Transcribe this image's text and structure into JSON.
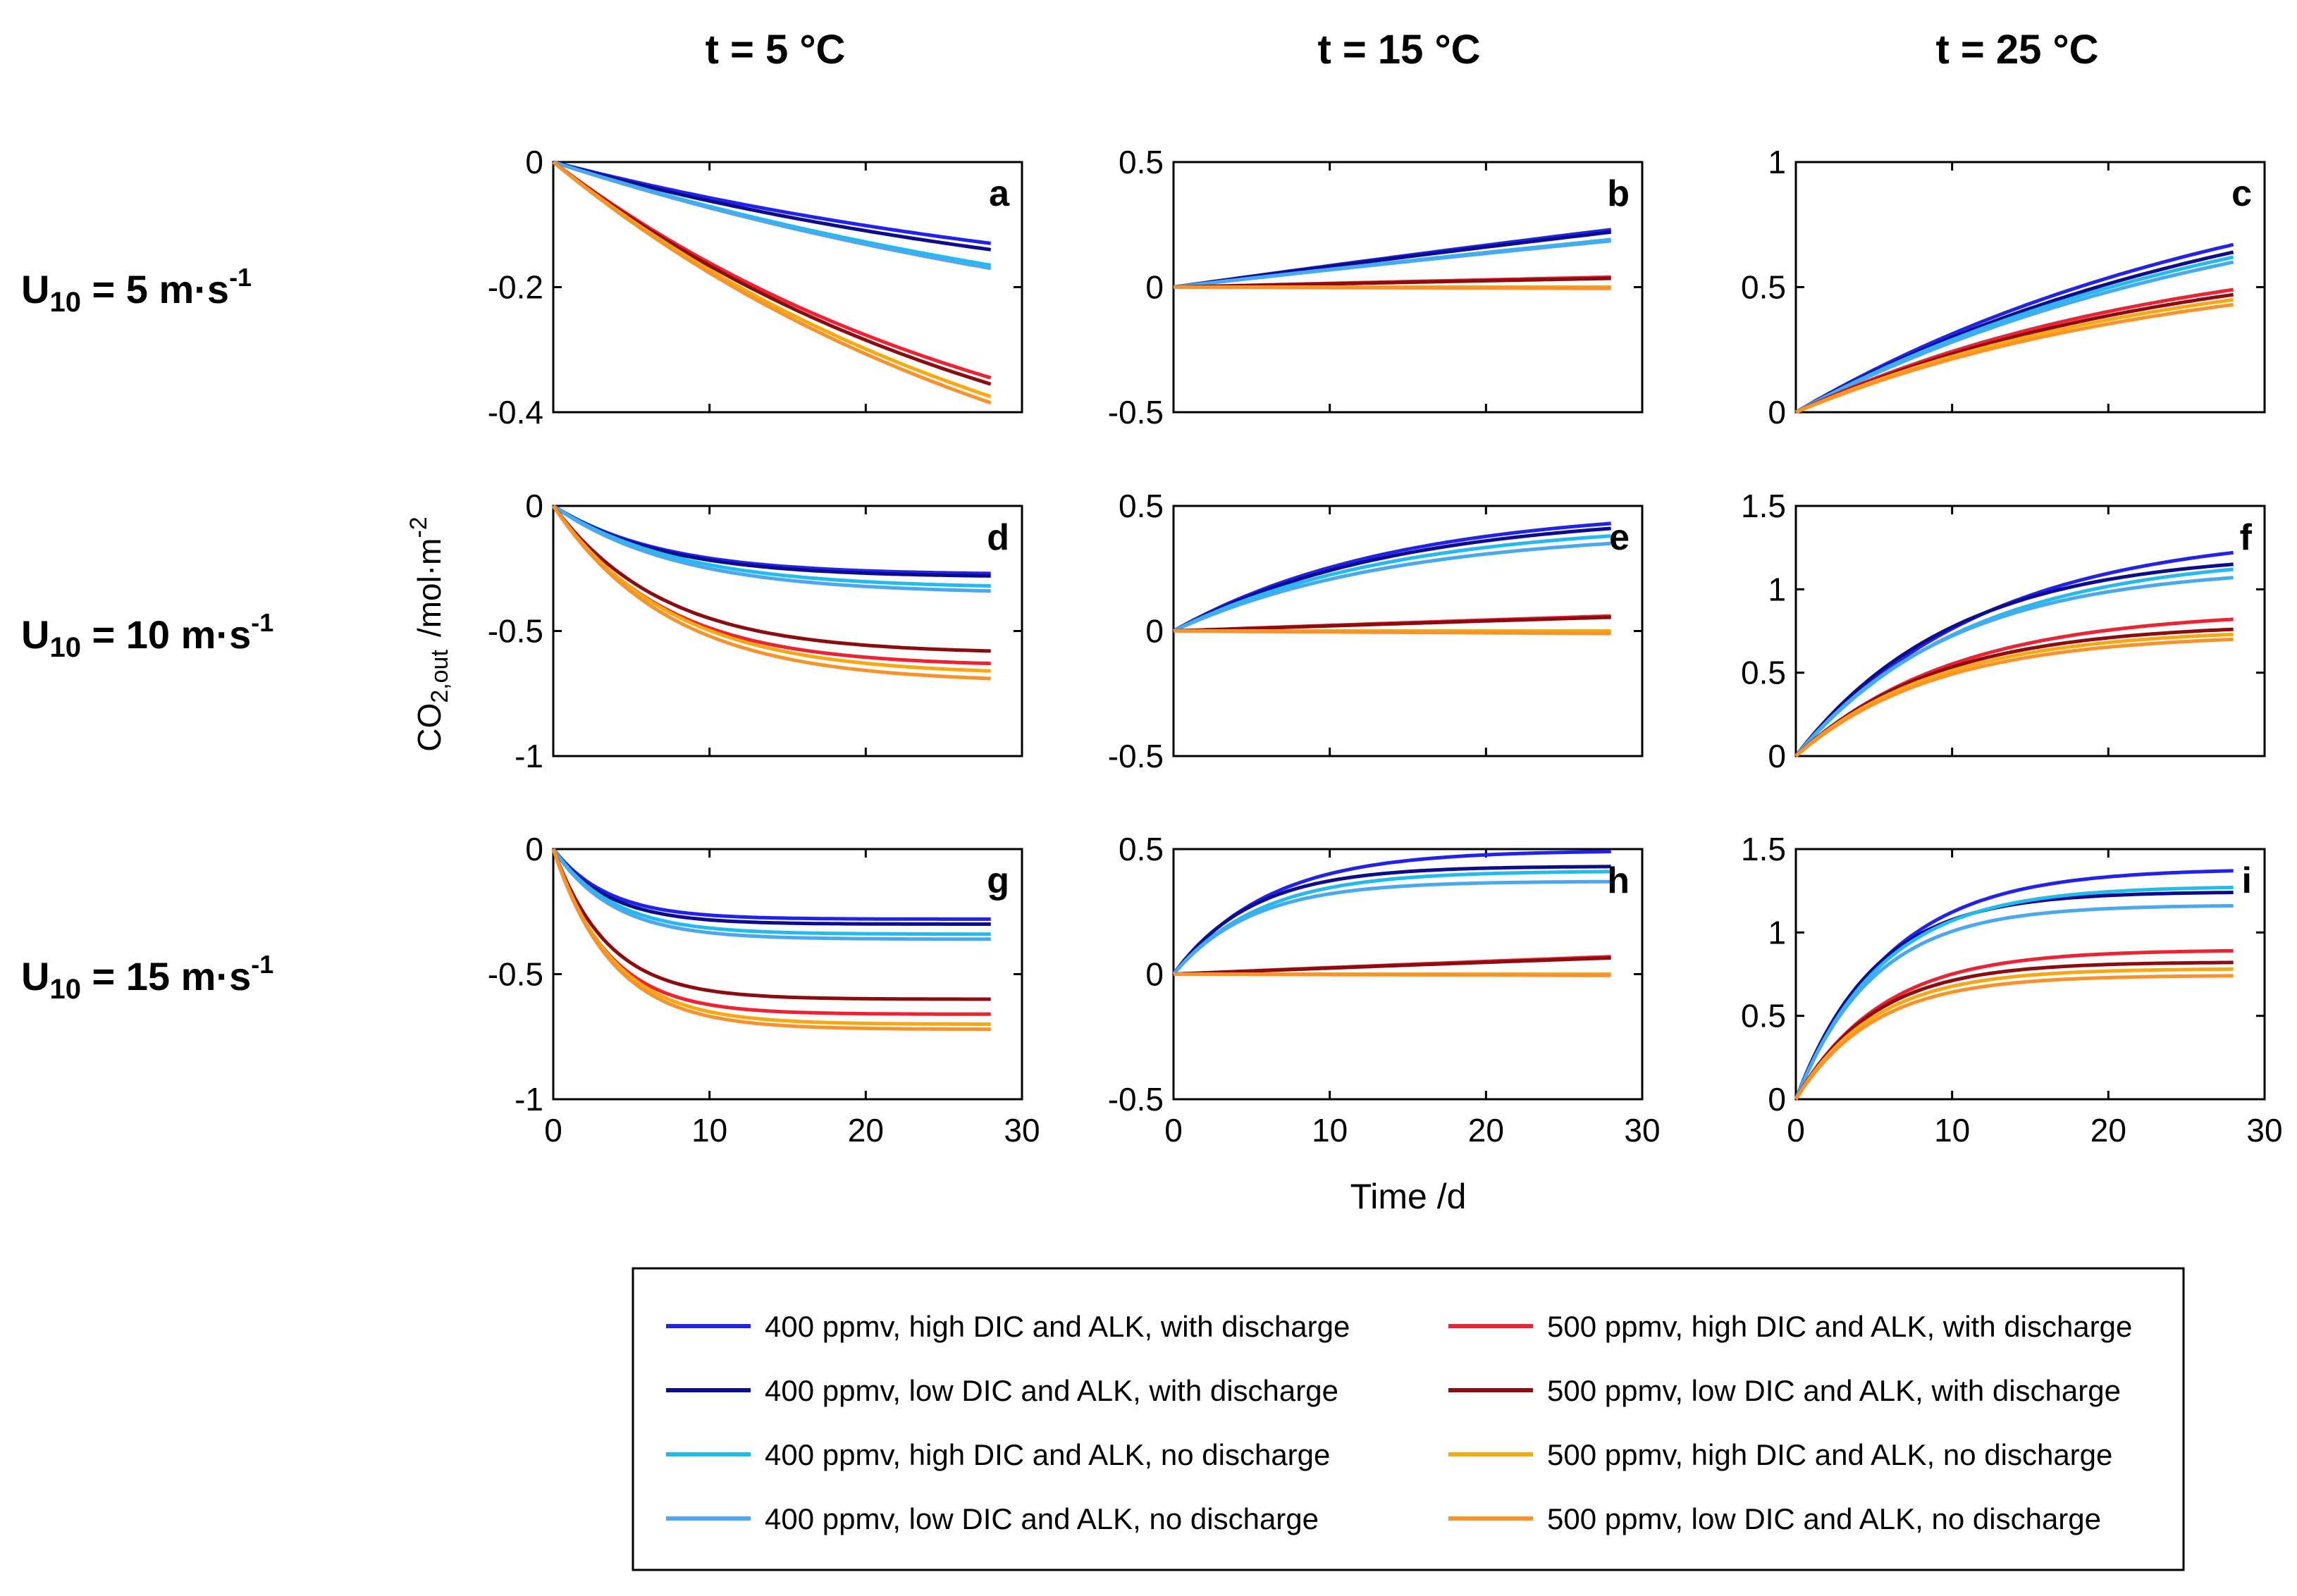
{
  "figure": {
    "column_titles": [
      "t = 5 °C",
      "t = 15 °C",
      "t = 25 °C"
    ],
    "row_labels": [
      {
        "prefix": "U",
        "sub": "10",
        "text": " = 5 m·s",
        "sup": "-1"
      },
      {
        "prefix": "U",
        "sub": "10",
        "text": " = 10 m·s",
        "sup": "-1"
      },
      {
        "prefix": "U",
        "sub": "10",
        "text": " = 15 m·s",
        "sup": "-1"
      }
    ],
    "ylabel": {
      "main": "CO",
      "sub": "2,out",
      "units": "/mol·m",
      "sup": "-2"
    },
    "xlabel": "Time /d"
  },
  "colors": {
    "s400_high_with": "#2222ee",
    "s400_low_with": "#0c0c8c",
    "s400_high_no": "#22bbee",
    "s400_low_no": "#4aa8f0",
    "s500_high_with": "#ee2233",
    "s500_low_with": "#8c0c10",
    "s500_high_no": "#f8a810",
    "s500_low_no": "#f8922a"
  },
  "legend": [
    {
      "key": "s400_high_with",
      "label": "400 ppmv, high DIC and ALK, with discharge"
    },
    {
      "key": "s400_low_with",
      "label": "400 ppmv, low DIC and ALK, with discharge"
    },
    {
      "key": "s400_high_no",
      "label": "400 ppmv, high DIC and ALK, no discharge"
    },
    {
      "key": "s400_low_no",
      "label": "400 ppmv, low DIC and ALK, no discharge"
    },
    {
      "key": "s500_high_with",
      "label": "500 ppmv, high DIC and ALK, with discharge"
    },
    {
      "key": "s500_low_with",
      "label": "500 ppmv, low DIC and ALK, with discharge"
    },
    {
      "key": "s500_high_no",
      "label": "500 ppmv, high DIC and ALK, no discharge"
    },
    {
      "key": "s500_low_no",
      "label": "500 ppmv, low DIC and ALK, no discharge"
    }
  ],
  "chart_data": [
    {
      "type": "line",
      "panel": "a",
      "title": "",
      "xlabel": "Time /d",
      "ylabel": "CO2,out /mol·m-2",
      "xlim": [
        0,
        30
      ],
      "ylim": [
        -0.4,
        0
      ],
      "xticks": [
        "0",
        "10",
        "20",
        "30"
      ],
      "yticks": [
        "-0.4",
        "-0.2",
        "0"
      ],
      "x_end": 28,
      "model": "series final values at day 28 (approach curves from 0)",
      "series": [
        {
          "key": "s400_high_with",
          "final": -0.13,
          "tau": 40
        },
        {
          "key": "s400_low_with",
          "final": -0.14,
          "tau": 38
        },
        {
          "key": "s400_high_no",
          "final": -0.165,
          "tau": 45
        },
        {
          "key": "s400_low_no",
          "final": -0.17,
          "tau": 45
        },
        {
          "key": "s500_high_with",
          "final": -0.345,
          "tau": 30
        },
        {
          "key": "s500_low_with",
          "final": -0.355,
          "tau": 30
        },
        {
          "key": "s500_high_no",
          "final": -0.375,
          "tau": 32
        },
        {
          "key": "s500_low_no",
          "final": -0.385,
          "tau": 32
        }
      ]
    },
    {
      "type": "line",
      "panel": "b",
      "xlim": [
        0,
        30
      ],
      "ylim": [
        -0.5,
        0.5
      ],
      "xticks": [
        "0",
        "10",
        "20",
        "30"
      ],
      "yticks": [
        "-0.5",
        "0",
        "0.5"
      ],
      "x_end": 28,
      "series": [
        {
          "key": "s400_high_with",
          "final": 0.23,
          "tau": 200
        },
        {
          "key": "s400_low_with",
          "final": 0.22,
          "tau": 200
        },
        {
          "key": "s400_high_no",
          "final": 0.19,
          "tau": 200
        },
        {
          "key": "s400_low_no",
          "final": 0.185,
          "tau": 200
        },
        {
          "key": "s500_high_with",
          "final": 0.04,
          "tau": 200
        },
        {
          "key": "s500_low_with",
          "final": 0.035,
          "tau": 200
        },
        {
          "key": "s500_high_no",
          "final": 0.0,
          "tau": 200
        },
        {
          "key": "s500_low_no",
          "final": -0.005,
          "tau": 200
        }
      ]
    },
    {
      "type": "line",
      "panel": "c",
      "xlim": [
        0,
        30
      ],
      "ylim": [
        0,
        1
      ],
      "xticks": [
        "0",
        "10",
        "20",
        "30"
      ],
      "yticks": [
        "0",
        "0.5",
        "1"
      ],
      "x_end": 28,
      "series": [
        {
          "key": "s400_high_with",
          "final": 0.67,
          "tau": 30
        },
        {
          "key": "s400_low_with",
          "final": 0.64,
          "tau": 30
        },
        {
          "key": "s400_high_no",
          "final": 0.62,
          "tau": 30
        },
        {
          "key": "s400_low_no",
          "final": 0.6,
          "tau": 30
        },
        {
          "key": "s500_high_with",
          "final": 0.49,
          "tau": 24
        },
        {
          "key": "s500_low_with",
          "final": 0.47,
          "tau": 24
        },
        {
          "key": "s500_high_no",
          "final": 0.45,
          "tau": 24
        },
        {
          "key": "s500_low_no",
          "final": 0.43,
          "tau": 24
        }
      ]
    },
    {
      "type": "line",
      "panel": "d",
      "xlim": [
        0,
        30
      ],
      "ylim": [
        -1,
        0
      ],
      "xticks": [
        "0",
        "10",
        "20",
        "30"
      ],
      "yticks": [
        "-1",
        "-0.5",
        "0"
      ],
      "x_end": 28,
      "series": [
        {
          "key": "s400_high_with",
          "final": -0.27,
          "tau": 7
        },
        {
          "key": "s400_low_with",
          "final": -0.28,
          "tau": 7
        },
        {
          "key": "s400_high_no",
          "final": -0.32,
          "tau": 8
        },
        {
          "key": "s400_low_no",
          "final": -0.34,
          "tau": 8
        },
        {
          "key": "s500_high_with",
          "final": -0.63,
          "tau": 7
        },
        {
          "key": "s500_low_with",
          "final": -0.58,
          "tau": 7
        },
        {
          "key": "s500_high_no",
          "final": -0.66,
          "tau": 7.5
        },
        {
          "key": "s500_low_no",
          "final": -0.69,
          "tau": 7.5
        }
      ]
    },
    {
      "type": "line",
      "panel": "e",
      "xlim": [
        0,
        30
      ],
      "ylim": [
        -0.5,
        0.5
      ],
      "xticks": [
        "0",
        "10",
        "20",
        "30"
      ],
      "yticks": [
        "-0.5",
        "0",
        "0.5"
      ],
      "x_end": 28,
      "series": [
        {
          "key": "s400_high_with",
          "final": 0.43,
          "tau": 14
        },
        {
          "key": "s400_low_with",
          "final": 0.41,
          "tau": 14
        },
        {
          "key": "s400_high_no",
          "final": 0.38,
          "tau": 14
        },
        {
          "key": "s400_low_no",
          "final": 0.35,
          "tau": 14
        },
        {
          "key": "s500_high_with",
          "final": 0.06,
          "tau": 200
        },
        {
          "key": "s500_low_with",
          "final": 0.055,
          "tau": 200
        },
        {
          "key": "s500_high_no",
          "final": 0.0,
          "tau": 200
        },
        {
          "key": "s500_low_no",
          "final": -0.01,
          "tau": 200
        }
      ]
    },
    {
      "type": "line",
      "panel": "f",
      "xlim": [
        0,
        30
      ],
      "ylim": [
        0,
        1.5
      ],
      "xticks": [
        "0",
        "10",
        "20",
        "30"
      ],
      "yticks": [
        "0",
        "0.5",
        "1",
        "1.5"
      ],
      "x_end": 28,
      "series": [
        {
          "key": "s400_high_with",
          "final": 1.22,
          "tau": 12
        },
        {
          "key": "s400_low_with",
          "final": 1.15,
          "tau": 10
        },
        {
          "key": "s400_high_no",
          "final": 1.12,
          "tau": 11
        },
        {
          "key": "s400_low_no",
          "final": 1.07,
          "tau": 10
        },
        {
          "key": "s500_high_with",
          "final": 0.82,
          "tau": 10
        },
        {
          "key": "s500_low_with",
          "final": 0.76,
          "tau": 9
        },
        {
          "key": "s500_high_no",
          "final": 0.73,
          "tau": 9
        },
        {
          "key": "s500_low_no",
          "final": 0.7,
          "tau": 9
        }
      ]
    },
    {
      "type": "line",
      "panel": "g",
      "xlim": [
        0,
        30
      ],
      "ylim": [
        -1,
        0
      ],
      "xticks": [
        "0",
        "10",
        "20",
        "30"
      ],
      "yticks": [
        "-1",
        "-0.5",
        "0"
      ],
      "x_end": 28,
      "series": [
        {
          "key": "s400_high_with",
          "final": -0.28,
          "tau": 3.5
        },
        {
          "key": "s400_low_with",
          "final": -0.3,
          "tau": 3.5
        },
        {
          "key": "s400_high_no",
          "final": -0.34,
          "tau": 3.8
        },
        {
          "key": "s400_low_no",
          "final": -0.36,
          "tau": 3.8
        },
        {
          "key": "s500_high_with",
          "final": -0.66,
          "tau": 3.5
        },
        {
          "key": "s500_low_with",
          "final": -0.6,
          "tau": 3.5
        },
        {
          "key": "s500_high_no",
          "final": -0.7,
          "tau": 3.8
        },
        {
          "key": "s500_low_no",
          "final": -0.72,
          "tau": 3.8
        }
      ]
    },
    {
      "type": "line",
      "panel": "h",
      "xlim": [
        0,
        30
      ],
      "ylim": [
        -0.5,
        0.5
      ],
      "xticks": [
        "0",
        "10",
        "20",
        "30"
      ],
      "yticks": [
        "-0.5",
        "0",
        "0.5"
      ],
      "x_end": 28,
      "series": [
        {
          "key": "s400_high_with",
          "final": 0.49,
          "tau": 6
        },
        {
          "key": "s400_low_with",
          "final": 0.43,
          "tau": 5
        },
        {
          "key": "s400_high_no",
          "final": 0.41,
          "tau": 5.5
        },
        {
          "key": "s400_low_no",
          "final": 0.37,
          "tau": 5
        },
        {
          "key": "s500_high_with",
          "final": 0.07,
          "tau": 200
        },
        {
          "key": "s500_low_with",
          "final": 0.065,
          "tau": 200
        },
        {
          "key": "s500_high_no",
          "final": 0.0,
          "tau": 200
        },
        {
          "key": "s500_low_no",
          "final": -0.005,
          "tau": 200
        }
      ]
    },
    {
      "type": "line",
      "panel": "i",
      "xlim": [
        0,
        30
      ],
      "ylim": [
        0,
        1.5
      ],
      "xticks": [
        "0",
        "10",
        "20",
        "30"
      ],
      "yticks": [
        "0",
        "0.5",
        "1",
        "1.5"
      ],
      "x_end": 28,
      "series": [
        {
          "key": "s400_high_with",
          "final": 1.37,
          "tau": 6
        },
        {
          "key": "s400_low_with",
          "final": 1.24,
          "tau": 5
        },
        {
          "key": "s400_high_no",
          "final": 1.27,
          "tau": 5.5
        },
        {
          "key": "s400_low_no",
          "final": 1.16,
          "tau": 5
        },
        {
          "key": "s500_high_with",
          "final": 0.89,
          "tau": 5.5
        },
        {
          "key": "s500_low_with",
          "final": 0.82,
          "tau": 5
        },
        {
          "key": "s500_high_no",
          "final": 0.78,
          "tau": 5
        },
        {
          "key": "s500_low_no",
          "final": 0.74,
          "tau": 5
        }
      ]
    }
  ]
}
